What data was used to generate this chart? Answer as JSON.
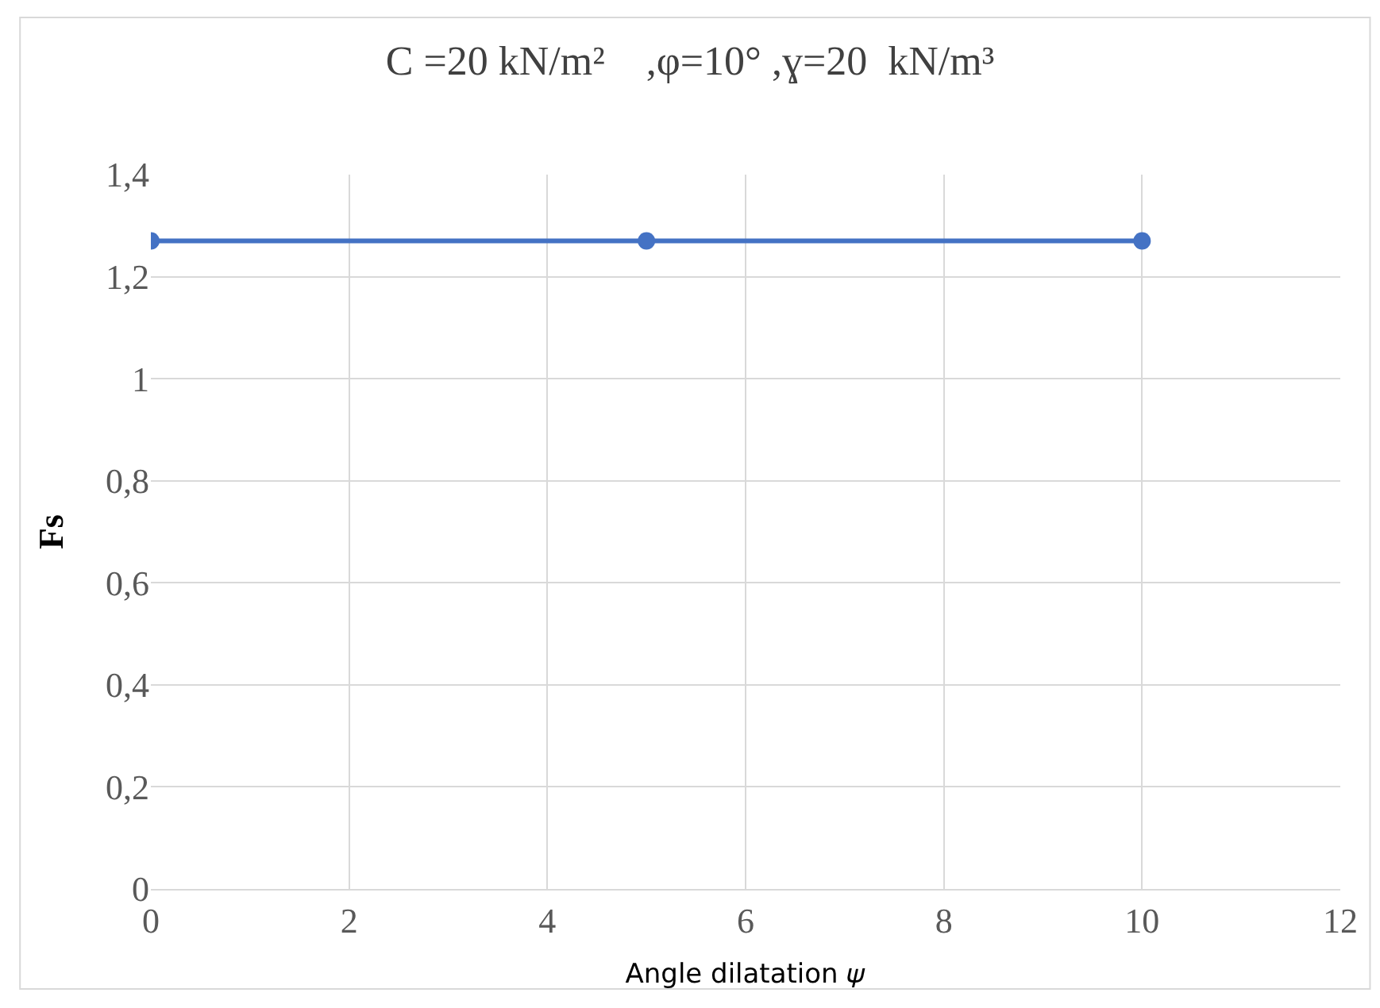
{
  "chart_data": {
    "type": "line",
    "title": "C =20 kN/m²    ,φ=10° ,ɣ=20  kN/m³",
    "xlabel": "Angle dilatation 𝜓",
    "ylabel": "Fs",
    "x": [
      0,
      5,
      10
    ],
    "series": [
      {
        "color": "#4472c4",
        "values": [
          1.27,
          1.27,
          1.27
        ]
      }
    ],
    "xlim": [
      0,
      12
    ],
    "xticks": [
      0,
      2,
      4,
      6,
      8,
      10,
      12
    ],
    "ylim": [
      0,
      1.4
    ],
    "yticks": [
      {
        "value": 0,
        "label": "0"
      },
      {
        "value": 0.2,
        "label": "0,2"
      },
      {
        "value": 0.4,
        "label": "0,4"
      },
      {
        "value": 0.6,
        "label": "0,6"
      },
      {
        "value": 0.8,
        "label": "0,8"
      },
      {
        "value": 1,
        "label": "1"
      },
      {
        "value": 1.2,
        "label": "1,2"
      },
      {
        "value": 1.4,
        "label": "1,4"
      }
    ],
    "grid": true,
    "marker": "circle",
    "line_style": "solid",
    "legend": false
  }
}
